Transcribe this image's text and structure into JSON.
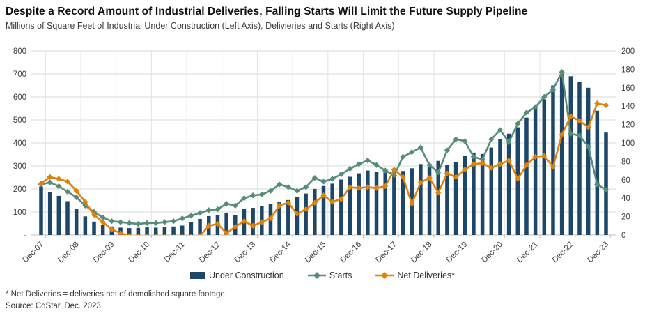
{
  "chart_data": {
    "type": "combo-bar-line",
    "title": "Despite a Record Amount of Industrial Deliveries, Falling Starts Will Limit the Future Supply Pipeline",
    "subtitle": "Millions of Square Feet of Industrial Under Construction (Left Axis), Delivieries and Starts (Right Axis)",
    "categories": [
      "Dec-07",
      "Mar-08",
      "Jun-08",
      "Sep-08",
      "Dec-08",
      "Mar-09",
      "Jun-09",
      "Sep-09",
      "Dec-09",
      "Mar-10",
      "Jun-10",
      "Sep-10",
      "Dec-10",
      "Mar-11",
      "Jun-11",
      "Sep-11",
      "Dec-11",
      "Mar-12",
      "Jun-12",
      "Sep-12",
      "Dec-12",
      "Mar-13",
      "Jun-13",
      "Sep-13",
      "Dec-13",
      "Mar-14",
      "Jun-14",
      "Sep-14",
      "Dec-14",
      "Mar-15",
      "Jun-15",
      "Sep-15",
      "Dec-15",
      "Mar-16",
      "Jun-16",
      "Sep-16",
      "Dec-16",
      "Mar-17",
      "Jun-17",
      "Sep-17",
      "Dec-17",
      "Mar-18",
      "Jun-18",
      "Sep-18",
      "Dec-18",
      "Mar-19",
      "Jun-19",
      "Sep-19",
      "Dec-19",
      "Mar-20",
      "Jun-20",
      "Sep-20",
      "Dec-20",
      "Mar-21",
      "Jun-21",
      "Sep-21",
      "Dec-21",
      "Mar-22",
      "Jun-22",
      "Sep-22",
      "Dec-22",
      "Mar-23",
      "Jun-23",
      "Sep-23",
      "Dec-23"
    ],
    "x_tick_labels": [
      "Dec-07",
      "Dec-08",
      "Dec-09",
      "Dec-10",
      "Dec-11",
      "Dec-12",
      "Dec-13",
      "Dec-14",
      "Dec-15",
      "Dec-16",
      "Dec-17",
      "Dec-18",
      "Dec-19",
      "Dec-20",
      "Dec-21",
      "Dec-22",
      "Dec-23"
    ],
    "x_tick_every": 4,
    "left_axis": {
      "min": 0,
      "max": 800,
      "step": 100,
      "tick_labels": [
        "800",
        "700",
        "600",
        "500",
        "400",
        "300",
        "200",
        "100",
        "-"
      ]
    },
    "right_axis": {
      "min": 0,
      "max": 200,
      "step": 20,
      "tick_labels": [
        "200",
        "180",
        "160",
        "140",
        "120",
        "100",
        "80",
        "60",
        "40",
        "20",
        "0"
      ]
    },
    "grid": true,
    "legend_position": "bottom",
    "series": [
      {
        "name": "Under Construction",
        "type": "bar",
        "axis": "left",
        "color": "#1C4769",
        "values": [
          211,
          187,
          170,
          147,
          114,
          81,
          58,
          45,
          37,
          32,
          30,
          31,
          33,
          32,
          34,
          37,
          41,
          57,
          70,
          82,
          88,
          95,
          85,
          115,
          118,
          127,
          135,
          144,
          152,
          165,
          180,
          200,
          213,
          223,
          241,
          253,
          268,
          280,
          274,
          274,
          280,
          278,
          290,
          308,
          295,
          322,
          305,
          318,
          345,
          358,
          352,
          380,
          418,
          440,
          468,
          510,
          555,
          590,
          650,
          700,
          690,
          665,
          640,
          540,
          445
        ]
      },
      {
        "name": "Starts",
        "type": "line",
        "axis": "right",
        "marker": "diamond",
        "color": "#578C7A",
        "values": [
          55,
          57,
          53,
          47,
          41,
          32,
          25,
          19,
          15,
          14,
          13,
          12,
          13,
          13,
          14,
          15,
          18,
          21,
          24,
          27,
          28,
          34,
          32,
          40,
          43,
          44,
          48,
          55,
          52,
          48,
          52,
          62,
          58,
          61,
          66,
          72,
          77,
          81,
          76,
          70,
          65,
          85,
          90,
          95,
          76,
          68,
          92,
          104,
          102,
          85,
          82,
          104,
          114,
          101,
          121,
          133,
          139,
          150,
          158,
          177,
          110,
          108,
          96,
          55,
          49
        ]
      },
      {
        "name": "Net Deliveries*",
        "type": "line",
        "axis": "right",
        "marker": "diamond",
        "color": "#DE820D",
        "values": [
          56,
          63,
          61,
          58,
          48,
          36,
          22,
          14,
          6,
          2,
          -1,
          -2,
          -2,
          -2,
          -2,
          -2,
          -2,
          -2,
          -1,
          10,
          12,
          2,
          9,
          15,
          10,
          14,
          18,
          32,
          35,
          23,
          28,
          35,
          43,
          36,
          39,
          52,
          51,
          52,
          51,
          53,
          71,
          63,
          34,
          57,
          62,
          46,
          67,
          63,
          71,
          77,
          78,
          73,
          77,
          81,
          61,
          76,
          85,
          86,
          74,
          109,
          129,
          124,
          117,
          143,
          141
        ]
      }
    ],
    "colors": {
      "grid": "#d9d9d9",
      "axis_text": "#404040",
      "vertical_grid": "#e3e3e3"
    }
  },
  "footnotes": [
    "* Net Deliveries = deliveries net of demolished square footage.",
    "Source: CoStar, Dec. 2023"
  ]
}
